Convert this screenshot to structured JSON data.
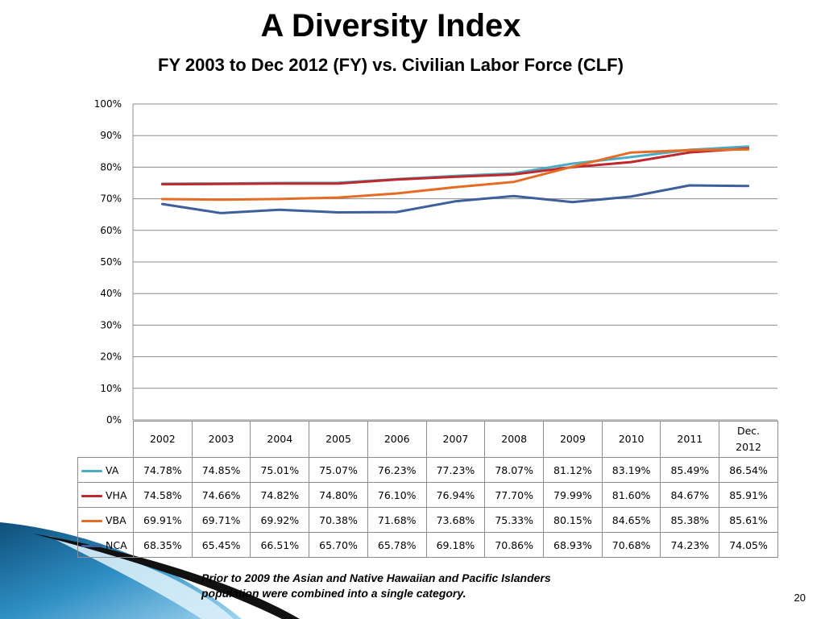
{
  "slide": {
    "title": "A Diversity Index",
    "subtitle": "FY 2003 to Dec 2012 (FY) vs. Civilian Labor Force (CLF)",
    "footnote_line1": "Prior to 2009 the Asian and Native Hawaiian and Pacific Islanders",
    "footnote_line2": "population were combined into a single category.",
    "page_number": "20"
  },
  "chart_data": {
    "type": "line",
    "categories": [
      "2002",
      "2003",
      "2004",
      "2005",
      "2006",
      "2007",
      "2008",
      "2009",
      "2010",
      "2011",
      "Dec. 2012"
    ],
    "y_ticks": [
      "0%",
      "10%",
      "20%",
      "30%",
      "40%",
      "50%",
      "60%",
      "70%",
      "80%",
      "90%",
      "100%"
    ],
    "ylim": [
      0,
      100
    ],
    "grid": true,
    "legend": "data-table",
    "series": [
      {
        "name": "VA",
        "color": "#4bacc6",
        "values": [
          74.78,
          74.85,
          75.01,
          75.07,
          76.23,
          77.23,
          78.07,
          81.12,
          83.19,
          85.49,
          86.54
        ],
        "labels": [
          "74.78%",
          "74.85%",
          "75.01%",
          "75.07%",
          "76.23%",
          "77.23%",
          "78.07%",
          "81.12%",
          "83.19%",
          "85.49%",
          "86.54%"
        ]
      },
      {
        "name": "VHA",
        "color": "#c0282d",
        "values": [
          74.58,
          74.66,
          74.82,
          74.8,
          76.1,
          76.94,
          77.7,
          79.99,
          81.6,
          84.67,
          85.91
        ],
        "labels": [
          "74.58%",
          "74.66%",
          "74.82%",
          "74.80%",
          "76.10%",
          "76.94%",
          "77.70%",
          "79.99%",
          "81.60%",
          "84.67%",
          "85.91%"
        ]
      },
      {
        "name": "VBA",
        "color": "#e46c25",
        "values": [
          69.91,
          69.71,
          69.92,
          70.38,
          71.68,
          73.68,
          75.33,
          80.15,
          84.65,
          85.38,
          85.61
        ],
        "labels": [
          "69.91%",
          "69.71%",
          "69.92%",
          "70.38%",
          "71.68%",
          "73.68%",
          "75.33%",
          "80.15%",
          "84.65%",
          "85.38%",
          "85.61%"
        ]
      },
      {
        "name": "NCA",
        "color": "#3e5f9c",
        "values": [
          68.35,
          65.45,
          66.51,
          65.7,
          65.78,
          69.18,
          70.86,
          68.93,
          70.68,
          74.23,
          74.05
        ],
        "labels": [
          "68.35%",
          "65.45%",
          "66.51%",
          "65.70%",
          "65.78%",
          "69.18%",
          "70.86%",
          "68.93%",
          "70.68%",
          "74.23%",
          "74.05%"
        ]
      }
    ]
  }
}
